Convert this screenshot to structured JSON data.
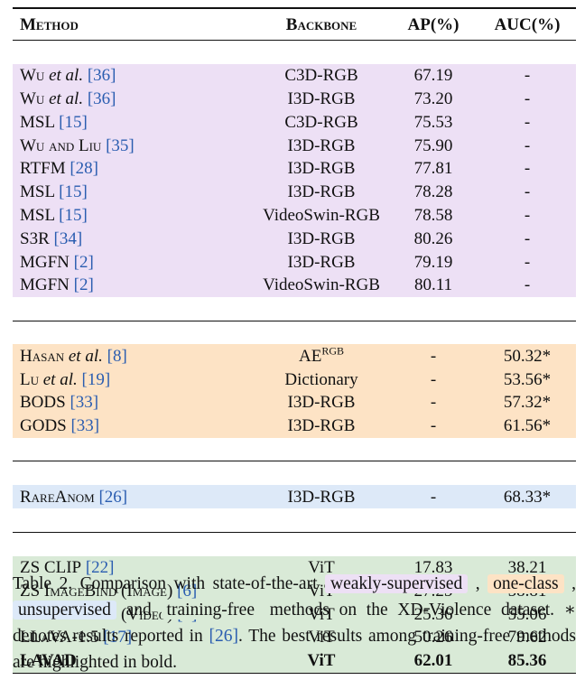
{
  "headers": {
    "method": "Method",
    "backbone": "Backbone",
    "ap": "AP(%)",
    "auc": "AUC(%)"
  },
  "groups": {
    "weak": [
      {
        "name": "Wu",
        "etal": " et al.",
        "cite": "[36]",
        "backbone": "C3D-RGB",
        "ap": "67.19",
        "auc": "-"
      },
      {
        "name": "Wu",
        "etal": " et al.",
        "cite": "[36]",
        "backbone": "I3D-RGB",
        "ap": "73.20",
        "auc": "-"
      },
      {
        "name": "MSL",
        "etal": "",
        "cite": "[15]",
        "backbone": "C3D-RGB",
        "ap": "75.53",
        "auc": "-"
      },
      {
        "name": "Wu and Liu",
        "etal": "",
        "cite": "[35]",
        "backbone": "I3D-RGB",
        "ap": "75.90",
        "auc": "-"
      },
      {
        "name": "RTFM",
        "etal": "",
        "cite": "[28]",
        "backbone": "I3D-RGB",
        "ap": "77.81",
        "auc": "-"
      },
      {
        "name": "MSL",
        "etal": "",
        "cite": "[15]",
        "backbone": "I3D-RGB",
        "ap": "78.28",
        "auc": "-"
      },
      {
        "name": "MSL",
        "etal": "",
        "cite": "[15]",
        "backbone": "VideoSwin-RGB",
        "ap": "78.58",
        "auc": "-"
      },
      {
        "name": "S3R",
        "etal": "",
        "cite": "[34]",
        "backbone": "I3D-RGB",
        "ap": "80.26",
        "auc": "-"
      },
      {
        "name": "MGFN",
        "etal": "",
        "cite": "[2]",
        "backbone": "I3D-RGB",
        "ap": "79.19",
        "auc": "-"
      },
      {
        "name": "MGFN",
        "etal": "",
        "cite": "[2]",
        "backbone": "VideoSwin-RGB",
        "ap": "80.11",
        "auc": "-"
      }
    ],
    "oneclass": [
      {
        "name": "Hasan",
        "etal": " et al.",
        "cite": "[8]",
        "backbone": "AE",
        "sup": "RGB",
        "ap": "-",
        "auc": "50.32*"
      },
      {
        "name": "Lu",
        "etal": " et al.",
        "cite": "[19]",
        "backbone": "Dictionary",
        "ap": "-",
        "auc": "53.56*"
      },
      {
        "name": "BODS",
        "etal": "",
        "cite": "[33]",
        "backbone": "I3D-RGB",
        "ap": "-",
        "auc": "57.32*"
      },
      {
        "name": "GODS",
        "etal": "",
        "cite": "[33]",
        "backbone": "I3D-RGB",
        "ap": "-",
        "auc": "61.56*"
      }
    ],
    "unsup": [
      {
        "name": "RareAnom",
        "etal": "",
        "cite": "[26]",
        "backbone": "I3D-RGB",
        "ap": "-",
        "auc": "68.33*"
      }
    ],
    "train": [
      {
        "name": "ZS CLIP",
        "etal": "",
        "cite": "[22]",
        "backbone": "ViT",
        "ap": "17.83",
        "auc": "38.21"
      },
      {
        "name": "ZS ImageBind (Image)",
        "etal": "",
        "cite": "[6]",
        "backbone": "ViT",
        "ap": "27.25",
        "auc": "58.81"
      },
      {
        "name": "ZS ImageBind (Video)",
        "etal": "",
        "cite": "[6]",
        "backbone": "ViT",
        "ap": "25.36",
        "auc": "55.06"
      },
      {
        "name": "LLaVA-1.5",
        "etal": "",
        "cite": "[17]",
        "backbone": "ViT",
        "ap": "50.26",
        "auc": "79.62"
      },
      {
        "name": "LAVAD",
        "etal": "",
        "cite": "",
        "backbone": "ViT",
        "ap": "62.01",
        "auc": "85.36",
        "bold": true
      }
    ]
  },
  "caption": {
    "prefix": "Table 2.  Comparison with state-of-the-art ",
    "weak": "weakly-supervised",
    "sep1": " , ",
    "one": "one-class",
    "sep2": " , ",
    "uns": "unsupervised",
    "and": " and ",
    "tr": "training-free",
    "mid": " methods on the XD-Violence dataset. ∗ denotes results reported in ",
    "cite": "[26]",
    "end": ". The best results among training-free methods are highlighted in bold."
  }
}
